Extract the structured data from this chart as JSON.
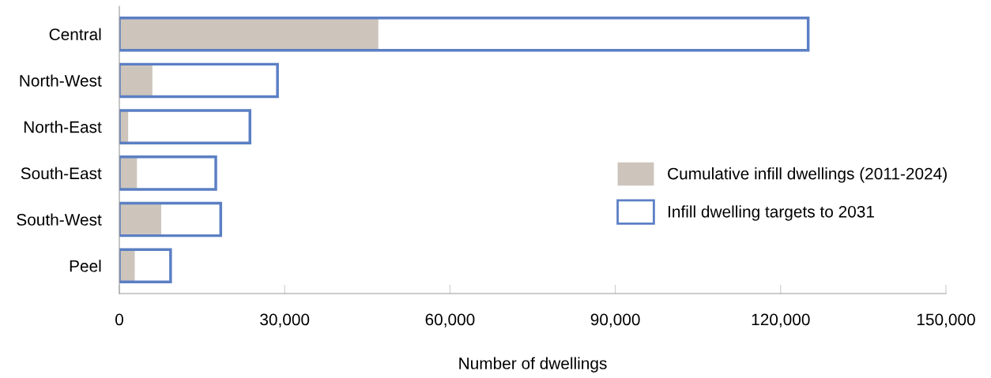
{
  "chart_data": {
    "type": "bar",
    "orientation": "horizontal",
    "xlabel": "Number of dwellings",
    "categories": [
      "Central",
      "North-West",
      "North-East",
      "South-East",
      "South-West",
      "Peel"
    ],
    "series": [
      {
        "name": "Cumulative infill dwellings (2011-2024)",
        "color": "#cdc5bc",
        "values": [
          47000,
          6000,
          1600,
          3200,
          7600,
          2800
        ]
      },
      {
        "name": "Infill dwelling targets to 2031",
        "color": "#5b7fc4",
        "values": [
          125000,
          28700,
          23700,
          17500,
          18400,
          9300
        ]
      }
    ],
    "xlim": [
      0,
      150000
    ],
    "xticks": [
      {
        "value": 0,
        "label": "0"
      },
      {
        "value": 30000,
        "label": "30,000"
      },
      {
        "value": 60000,
        "label": "60,000"
      },
      {
        "value": 90000,
        "label": "90,000"
      },
      {
        "value": 120000,
        "label": "120,000"
      },
      {
        "value": 150000,
        "label": "150,000"
      }
    ],
    "grid": false,
    "legend": "center right"
  }
}
